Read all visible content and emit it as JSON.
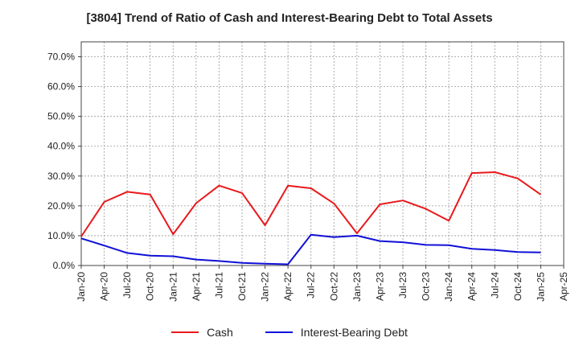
{
  "chart_data": {
    "type": "line",
    "title": "[3804]  Trend of Ratio of Cash and Interest-Bearing Debt to Total Assets",
    "xlabel": "",
    "ylabel": "",
    "ylim": [
      0,
      75
    ],
    "yticks": [
      0,
      10,
      20,
      30,
      40,
      50,
      60,
      70
    ],
    "ytick_labels": [
      "0.0%",
      "10.0%",
      "20.0%",
      "30.0%",
      "40.0%",
      "50.0%",
      "60.0%",
      "70.0%"
    ],
    "x_tick_labels": [
      "Jan-20",
      "Apr-20",
      "Jul-20",
      "Oct-20",
      "Jan-21",
      "Apr-21",
      "Jul-21",
      "Oct-21",
      "Jan-22",
      "Apr-22",
      "Jul-22",
      "Oct-22",
      "Jan-23",
      "Apr-23",
      "Jul-23",
      "Oct-23",
      "Jan-24",
      "Apr-24",
      "Jul-24",
      "Oct-24",
      "Jan-25",
      "Apr-25"
    ],
    "grid": true,
    "legend_position": "bottom-center",
    "series": [
      {
        "name": "Cash",
        "color": "#e8191c",
        "values": [
          9.7,
          21.3,
          24.7,
          23.8,
          10.5,
          20.9,
          26.8,
          24.3,
          13.5,
          26.8,
          25.9,
          20.8,
          10.8,
          20.5,
          21.8,
          19.0,
          15.0,
          31.0,
          31.3,
          29.2,
          23.8
        ]
      },
      {
        "name": "Interest-Bearing Debt",
        "color": "#1010d8",
        "values": [
          9.1,
          6.7,
          4.2,
          3.3,
          3.1,
          2.0,
          1.5,
          0.9,
          0.6,
          0.4,
          10.3,
          9.5,
          10.0,
          8.2,
          7.8,
          6.9,
          6.8,
          5.6,
          5.2,
          4.5,
          4.4
        ]
      }
    ]
  }
}
